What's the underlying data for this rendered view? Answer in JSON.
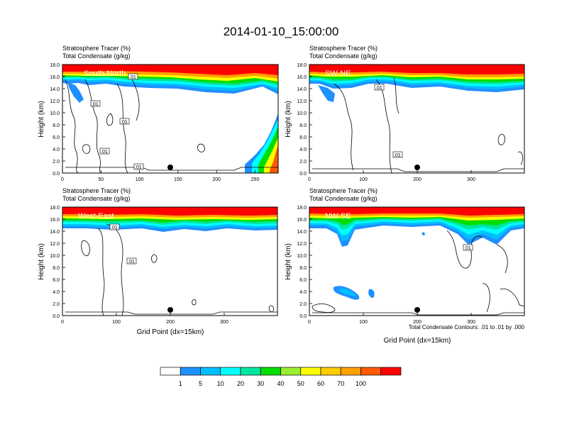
{
  "title": "2014-01-10_15:00:00",
  "colors": {
    "levels": [
      "#ffffff",
      "#1e90ff",
      "#00bfff",
      "#00ffff",
      "#00e6a0",
      "#00dd00",
      "#99ee33",
      "#ffff00",
      "#ffcc00",
      "#ffa000",
      "#ff5a00",
      "#ff0000"
    ]
  },
  "colorbar": {
    "labels": [
      "1",
      "5",
      "10",
      "20",
      "30",
      "40",
      "50",
      "60",
      "70",
      "100"
    ]
  },
  "panels": [
    {
      "id": "south-north",
      "title1": "Stratosphere Tracer   (%)",
      "title2": "Total Condensate   (g/kg)",
      "label": "South-North",
      "ylabel": "Height (km)",
      "xlabel": "",
      "xticks": [
        "0",
        "50",
        "100",
        "150",
        "200",
        "250"
      ],
      "yticks": [
        "0.0",
        "2.0",
        "4.0",
        "6.0",
        "8.0",
        "10.0",
        "12.0",
        "14.0",
        "16.0",
        "18.0"
      ],
      "contour_labels": [
        ".01",
        ".01",
        ".01",
        ".01",
        ".01"
      ],
      "note": ""
    },
    {
      "id": "sw-ne",
      "title1": "Stratosphere Tracer   (%)",
      "title2": "Total Condensate   (g/kg)",
      "label": "SW-NE",
      "ylabel": "Height (km)",
      "xlabel": "",
      "xticks": [
        "0",
        "100",
        "200",
        "300"
      ],
      "yticks": [
        "0.0",
        "2.0",
        "4.0",
        "6.0",
        "8.0",
        "10.0",
        "12.0",
        "14.0",
        "16.0",
        "18.0"
      ],
      "contour_labels": [
        ".01",
        ".01"
      ],
      "note": ""
    },
    {
      "id": "west-east",
      "title1": "Stratosphere Tracer   (%)",
      "title2": "Total Condensate   (g/kg)",
      "label": "West-East",
      "ylabel": "Height (km)",
      "xlabel": "Grid Point (dx=15km)",
      "xticks": [
        "0",
        "100",
        "200",
        "300"
      ],
      "yticks": [
        "0.0",
        "2.0",
        "4.0",
        "6.0",
        "8.0",
        "10.0",
        "12.0",
        "14.0",
        "16.0",
        "18.0"
      ],
      "contour_labels": [
        ".01",
        ".01"
      ],
      "note": ""
    },
    {
      "id": "nw-se",
      "title1": "Stratosphere Tracer   (%)",
      "title2": "Total Condensate   (g/kg)",
      "label": "NW-SE",
      "ylabel": "Height (km)",
      "xlabel": "Grid Point (dx=15km)",
      "xticks": [
        "0",
        "100",
        "200",
        "300"
      ],
      "yticks": [
        "0.0",
        "2.0",
        "4.0",
        "6.0",
        "8.0",
        "10.0",
        "12.0",
        "14.0",
        "16.0",
        "18.0"
      ],
      "contour_labels": [
        ".01"
      ],
      "note": "Total Condensate Contours: .01 to .01 by .000"
    }
  ],
  "chart_data": [
    {
      "type": "heatmap",
      "panel": "South-North",
      "ylim": [
        0,
        18
      ],
      "xlim": [
        0,
        280
      ],
      "tropopause_km": [
        14.0,
        14.2,
        13.6,
        14.5,
        15.0,
        14.8,
        14.5,
        14.2,
        14.3,
        14.6
      ],
      "tracer_high_pct": 100,
      "marker": {
        "x": 140,
        "y": 1.0
      }
    },
    {
      "type": "heatmap",
      "panel": "SW-NE",
      "ylim": [
        0,
        18
      ],
      "xlim": [
        0,
        390
      ],
      "tropopause_km": [
        14.0,
        13.8,
        14.4,
        14.6,
        14.8,
        14.7,
        14.5,
        14.7,
        14.5,
        14.6
      ],
      "tracer_high_pct": 100,
      "marker": {
        "x": 200,
        "y": 1.0
      }
    },
    {
      "type": "heatmap",
      "panel": "West-East",
      "ylim": [
        0,
        18
      ],
      "xlim": [
        0,
        390
      ],
      "tropopause_km": [
        15.0,
        15.2,
        15.3,
        15.4,
        15.3,
        15.2,
        15.3,
        15.4,
        15.2,
        15.1
      ],
      "tracer_high_pct": 100,
      "marker": {
        "x": 200,
        "y": 1.0
      }
    },
    {
      "type": "heatmap",
      "panel": "NW-SE",
      "ylim": [
        0,
        18
      ],
      "xlim": [
        0,
        390
      ],
      "tropopause_km": [
        14.6,
        12.5,
        14.0,
        14.8,
        15.0,
        15.1,
        14.0,
        13.2,
        14.5,
        15.0
      ],
      "tracer_high_pct": 100,
      "marker": {
        "x": 200,
        "y": 1.0
      }
    }
  ]
}
